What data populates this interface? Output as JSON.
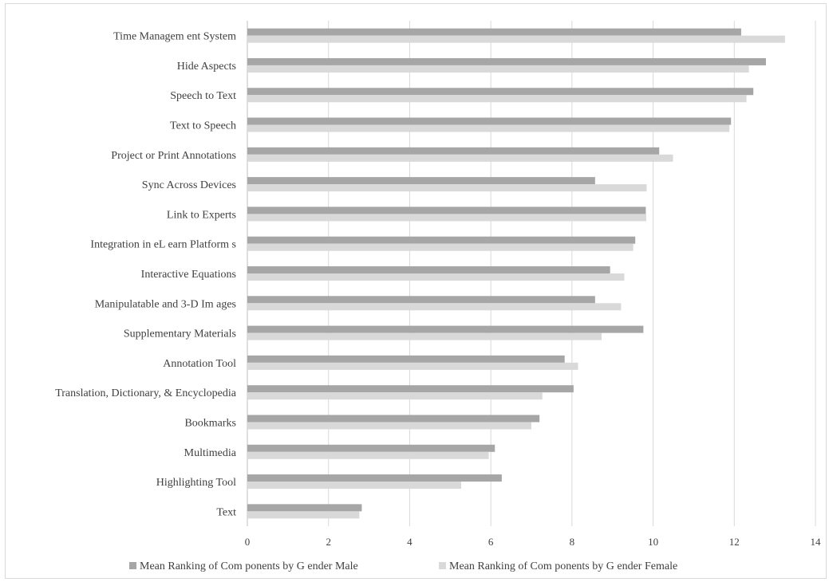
{
  "chart_data": {
    "type": "bar",
    "orientation": "horizontal",
    "categories": [
      "Time Managem ent System",
      "Hide Aspects",
      "Speech to Text",
      "Text to Speech",
      "Project or Print Annotations",
      "Sync Across Devices",
      "Link to Experts",
      "Integration in eL earn Platform s",
      "Interactive Equations",
      "Manipulatable and 3-D Im ages",
      "Supplementary Materials",
      "Annotation Tool",
      "Translation, Dictionary, & Encyclopedia",
      "Bookmarks",
      "Multimedia",
      "Highlighting Tool",
      "Text"
    ],
    "series": [
      {
        "name": "Mean Ranking of Com ponents by G ender Male",
        "color": "#a6a6a6",
        "values": [
          12.17,
          12.78,
          12.47,
          11.92,
          10.15,
          8.57,
          9.82,
          9.56,
          8.94,
          8.57,
          9.76,
          7.82,
          8.04,
          7.2,
          6.1,
          6.27,
          2.82
        ]
      },
      {
        "name": "Mean Ranking of Com ponents by G ender Female",
        "color": "#d9d9d9",
        "values": [
          13.25,
          12.36,
          12.3,
          11.88,
          10.49,
          9.84,
          9.83,
          9.51,
          9.29,
          9.21,
          8.73,
          8.15,
          7.27,
          7.0,
          5.95,
          5.27,
          2.76
        ]
      }
    ],
    "xlim": [
      0,
      14
    ],
    "xticks": [
      "0",
      "2",
      "4",
      "6",
      "8",
      "10",
      "12",
      "14"
    ],
    "grid": true,
    "legend": "bottom"
  }
}
